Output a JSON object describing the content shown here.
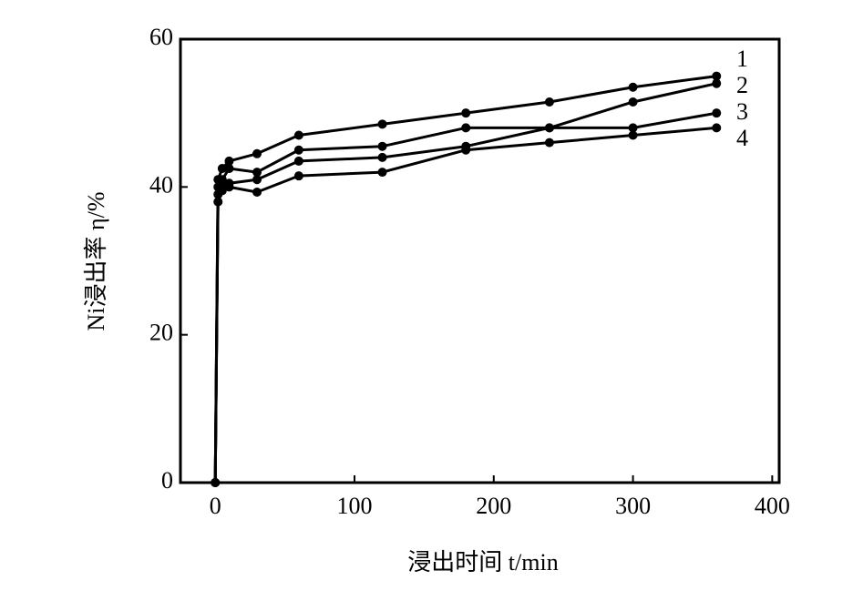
{
  "chart_data": {
    "type": "line",
    "y_label": "Ni浸出率 η/%",
    "x_label": "浸出时间 t/min",
    "x": [
      0,
      2,
      5,
      10,
      30,
      60,
      120,
      180,
      240,
      300,
      360
    ],
    "series": [
      {
        "name": "1",
        "color": "#000000",
        "values": [
          0,
          41,
          42.5,
          43.5,
          44.5,
          47,
          48.5,
          50,
          51.5,
          53.5,
          55
        ]
      },
      {
        "name": "2",
        "color": "#000000",
        "values": [
          0,
          40,
          41,
          42.5,
          42,
          45,
          45.5,
          48,
          48,
          51.5,
          54
        ]
      },
      {
        "name": "3",
        "color": "#000000",
        "values": [
          0,
          39,
          40,
          40.5,
          41,
          43.5,
          44,
          45.5,
          48,
          48,
          50
        ]
      },
      {
        "name": "4",
        "color": "#000000",
        "values": [
          0,
          38,
          39.5,
          40,
          39.3,
          41.5,
          42,
          45,
          46,
          47,
          48
        ]
      }
    ],
    "xlim": [
      -25,
      405
    ],
    "xticks": [
      0,
      100,
      200,
      300,
      400
    ],
    "ylim": [
      0,
      60
    ],
    "yticks": [
      0,
      20,
      40,
      60
    ],
    "grid": false
  }
}
